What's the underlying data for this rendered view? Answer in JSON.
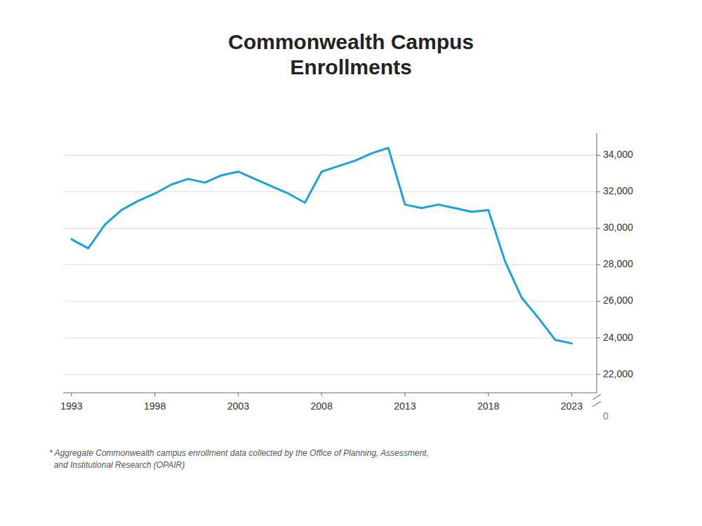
{
  "chart_data": {
    "type": "line",
    "title": "Commonwealth Campus\nEnrollments",
    "x": [
      1993,
      1994,
      1995,
      1996,
      1997,
      1998,
      1999,
      2000,
      2001,
      2002,
      2003,
      2004,
      2005,
      2006,
      2007,
      2008,
      2009,
      2010,
      2011,
      2012,
      2013,
      2014,
      2015,
      2016,
      2017,
      2018,
      2019,
      2020,
      2021,
      2022,
      2023
    ],
    "values": [
      29400,
      28900,
      30200,
      31000,
      31500,
      31900,
      32400,
      32700,
      32500,
      32900,
      33100,
      32700,
      32300,
      31900,
      31400,
      33100,
      33400,
      33700,
      34100,
      34400,
      31300,
      31100,
      31300,
      31100,
      30900,
      31000,
      28200,
      26200,
      25100,
      23900,
      23700
    ],
    "color": "#1da1d6",
    "xlim": [
      1992.5,
      2024.5
    ],
    "xticks": [
      1993,
      1998,
      2003,
      2008,
      2013,
      2018,
      2023
    ],
    "ylim": [
      21000,
      35200
    ],
    "yticks": [
      {
        "value": 22000,
        "label": "22,000"
      },
      {
        "value": 24000,
        "label": "24,000"
      },
      {
        "value": 26000,
        "label": "26,000"
      },
      {
        "value": 28000,
        "label": "28,000"
      },
      {
        "value": 30000,
        "label": "30,000"
      },
      {
        "value": 32000,
        "label": "32,000"
      },
      {
        "value": 34000,
        "label": "34,000"
      }
    ],
    "grid": true,
    "annotations": [
      "0"
    ],
    "footnote": "* Aggregate Commonwealth campus enrollment data collected by the Office of Planning, Assessment,\n  and Institutional Research (OPAIR)"
  }
}
